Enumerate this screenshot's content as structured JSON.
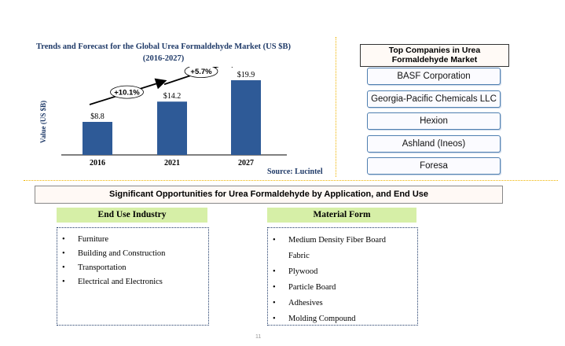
{
  "chart_data": {
    "type": "bar",
    "title": "Trends and Forecast for  the Global Urea Formaldehyde Market (US $B)",
    "subtitle": "(2016-2027)",
    "ylabel": "Value (US $B)",
    "xlabel": "",
    "categories": [
      "2016",
      "2021",
      "2027"
    ],
    "values": [
      8.8,
      14.2,
      19.9
    ],
    "data_labels": [
      "$8.8",
      "$14.2",
      "$19.9"
    ],
    "ylim": [
      0,
      22
    ],
    "grid": false,
    "bar_color": "#2e5a97",
    "growth_annotations": [
      {
        "label": "+10.1%",
        "from": "2016",
        "to": "2021"
      },
      {
        "label": "+5.7%",
        "from": "2021",
        "to": "2027"
      }
    ],
    "source": "Source: Lucintel"
  },
  "companies": {
    "title": "Top Companies  in Urea Formaldehyde  Market",
    "items": [
      "BASF Corporation",
      "Georgia-Pacific Chemicals LLC",
      "Hexion",
      "Ashland (Ineos)",
      "Foresa"
    ]
  },
  "opportunities": {
    "title": "Significant  Opportunities for Urea Formaldehyde  by Application,  and End Use",
    "end_use": {
      "heading": "End Use Industry",
      "items": [
        "Furniture",
        "Building and Construction",
        "Transportation",
        "Electrical and Electronics"
      ]
    },
    "material": {
      "heading": "Material Form",
      "items": [
        {
          "text": "Medium  Density Fiber Board",
          "bullet": true
        },
        {
          "text": "Fabric",
          "bullet": false
        },
        {
          "text": "Plywood",
          "bullet": true
        },
        {
          "text": "Particle Board",
          "bullet": true
        },
        {
          "text": "Adhesives",
          "bullet": true
        },
        {
          "text": "Molding Compound",
          "bullet": true
        }
      ]
    }
  },
  "page_number": "11"
}
